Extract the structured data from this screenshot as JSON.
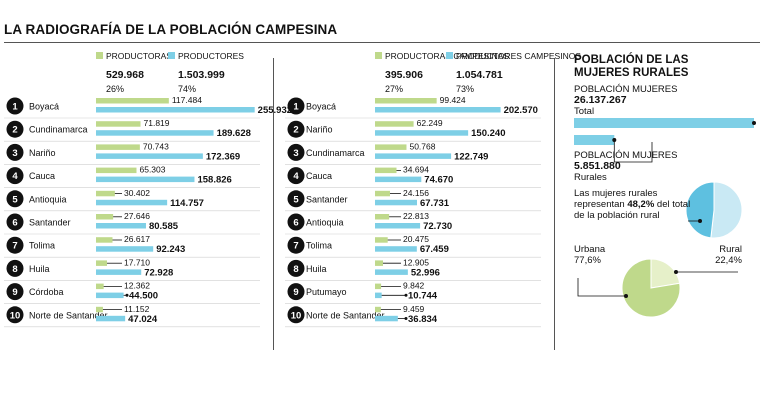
{
  "title": "LA RADIOGRAFÍA DE LA POBLACIÓN CAMPESINA",
  "colors": {
    "green": "#bfd98b",
    "blue": "#7ecfe6",
    "dark": "#111111",
    "badge": "#111111"
  },
  "chart_data": [
    {
      "type": "bar",
      "legend": [
        {
          "name": "PRODUCTORAS",
          "total": "529.968",
          "pct": "26%"
        },
        {
          "name": "PRODUCTORES",
          "total": "1.503.999",
          "pct": "74%"
        }
      ],
      "categories": [
        "Boyacá",
        "Cundinamarca",
        "Nariño",
        "Cauca",
        "Antioquia",
        "Santander",
        "Tolima",
        "Huila",
        "Córdoba",
        "Norte de Santander"
      ],
      "series": [
        {
          "name": "PRODUCTORAS",
          "values": [
            117484,
            71819,
            70743,
            65303,
            30402,
            27646,
            26617,
            17710,
            12362,
            11152
          ],
          "labels": [
            "117.484",
            "71.819",
            "70.743",
            "65.303",
            "30.402",
            "27.646",
            "26.617",
            "17.710",
            "12.362",
            "11.152"
          ]
        },
        {
          "name": "PRODUCTORES",
          "values": [
            255932,
            189628,
            172369,
            158826,
            114757,
            80585,
            92243,
            72928,
            44500,
            47024
          ],
          "labels": [
            "255.932",
            "189.628",
            "172.369",
            "158.826",
            "114.757",
            "80.585",
            "92.243",
            "72.928",
            "44.500",
            "47.024"
          ]
        }
      ]
    },
    {
      "type": "bar",
      "legend": [
        {
          "name": "PRODUCTORAS CAMPESINAS",
          "total": "395.906",
          "pct": "27%"
        },
        {
          "name": "PRODUCTORES CAMPESINOS",
          "total": "1.054.781",
          "pct": "73%"
        }
      ],
      "categories": [
        "Boyacá",
        "Nariño",
        "Cundinamarca",
        "Cauca",
        "Santander",
        "Antioquia",
        "Tolima",
        "Huila",
        "Putumayo",
        "Norte de Santander"
      ],
      "series": [
        {
          "name": "PRODUCTORAS CAMPESINAS",
          "values": [
            99424,
            62249,
            50768,
            34694,
            24156,
            22813,
            20475,
            12905,
            9842,
            9459
          ],
          "labels": [
            "99.424",
            "62.249",
            "50.768",
            "34.694",
            "24.156",
            "22.813",
            "20.475",
            "12.905",
            "9.842",
            "9.459"
          ]
        },
        {
          "name": "PRODUCTORES CAMPESINOS",
          "values": [
            202570,
            150240,
            122749,
            74670,
            67731,
            72730,
            67459,
            52996,
            10744,
            36834
          ],
          "labels": [
            "202.570",
            "150.240",
            "122.749",
            "74.670",
            "67.731",
            "72.730",
            "67.459",
            "52.996",
            "10.744",
            "36.834"
          ]
        }
      ]
    },
    {
      "type": "bar",
      "title": "POBLACIÓN DE LAS MUJERES RURALES",
      "categories": [
        "Total",
        "Rurales"
      ],
      "values": [
        26137267,
        5851880
      ],
      "items": [
        {
          "label": "POBLACIÓN MUJERES",
          "value": "26.137.267",
          "sublabel": "Total"
        },
        {
          "label": "POBLACIÓN MUJERES",
          "value": "5.851.880",
          "sublabel": "Rurales"
        }
      ]
    },
    {
      "type": "pie",
      "annotation": "Las mujeres rurales representan",
      "annotation_bold": "48,2%",
      "annotation_rest": " del total de la población rural",
      "values": [
        48.2,
        51.8
      ]
    },
    {
      "type": "pie",
      "slices": [
        {
          "name": "Urbana",
          "label": "77,6%",
          "value": 77.6
        },
        {
          "name": "Rural",
          "label": "22,4%",
          "value": 22.4
        }
      ]
    }
  ]
}
